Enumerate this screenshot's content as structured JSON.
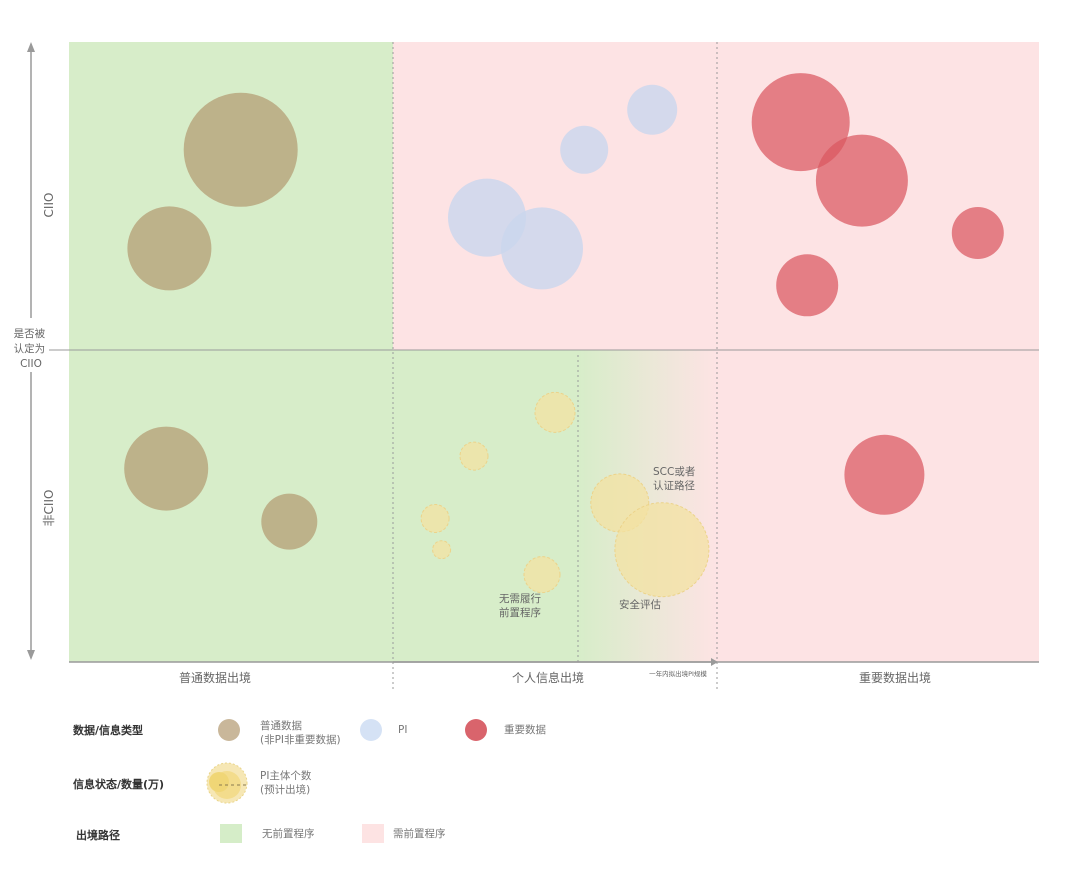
{
  "chart_data": {
    "type": "bubble",
    "quadrant_grid": {
      "x_columns": [
        "普通数据出境",
        "个人信息出境",
        "重要数据出境"
      ],
      "y_rows": [
        "CIIO",
        "非CIIO"
      ],
      "y_axis_title": "是否被认定为CIIO",
      "x_sub_axis_label": "一年内拟出境PI规模",
      "column_backgrounds": [
        "无前置程序",
        "mixed",
        "需前置程序"
      ]
    },
    "series": [
      {
        "name": "普通数据(非PI非重要数据)",
        "color": "#b8a77f",
        "points": [
          {
            "col": 0,
            "row": "CIIO",
            "fx": 0.53,
            "fy": 0.35,
            "size": 57
          },
          {
            "col": 0,
            "row": "CIIO",
            "fx": 0.31,
            "fy": 0.67,
            "size": 42
          },
          {
            "col": 0,
            "row": "非CIIO",
            "fx": 0.3,
            "fy": 0.38,
            "size": 42
          },
          {
            "col": 0,
            "row": "非CIIO",
            "fx": 0.68,
            "fy": 0.55,
            "size": 28
          }
        ]
      },
      {
        "name": "PI",
        "color": "#c9d6ee",
        "points": [
          {
            "col": 1,
            "row": "CIIO",
            "fx": 0.29,
            "fy": 0.57,
            "size": 39
          },
          {
            "col": 1,
            "row": "CIIO",
            "fx": 0.46,
            "fy": 0.67,
            "size": 41
          },
          {
            "col": 1,
            "row": "CIIO",
            "fx": 0.59,
            "fy": 0.35,
            "size": 24
          },
          {
            "col": 1,
            "row": "CIIO",
            "fx": 0.8,
            "fy": 0.22,
            "size": 25
          }
        ]
      },
      {
        "name": "重要数据",
        "color": "#d9585f",
        "points": [
          {
            "col": 2,
            "row": "CIIO",
            "fx": 0.26,
            "fy": 0.26,
            "size": 49
          },
          {
            "col": 2,
            "row": "CIIO",
            "fx": 0.45,
            "fy": 0.45,
            "size": 46
          },
          {
            "col": 2,
            "row": "CIIO",
            "fx": 0.81,
            "fy": 0.62,
            "size": 26
          },
          {
            "col": 2,
            "row": "CIIO",
            "fx": 0.28,
            "fy": 0.79,
            "size": 31
          },
          {
            "col": 2,
            "row": "非CIIO",
            "fx": 0.52,
            "fy": 0.4,
            "size": 40
          }
        ]
      },
      {
        "name": "PI主体个数(预计出境)",
        "color": "#f3e1a2",
        "points": [
          {
            "col": 1,
            "row": "非CIIO",
            "fx": 0.5,
            "fy": 0.2,
            "size": 20
          },
          {
            "col": 1,
            "row": "非CIIO",
            "fx": 0.25,
            "fy": 0.34,
            "size": 14
          },
          {
            "col": 1,
            "row": "非CIIO",
            "fx": 0.13,
            "fy": 0.54,
            "size": 14
          },
          {
            "col": 1,
            "row": "非CIIO",
            "fx": 0.15,
            "fy": 0.64,
            "size": 9
          },
          {
            "col": 1,
            "row": "非CIIO",
            "fx": 0.46,
            "fy": 0.72,
            "size": 18
          },
          {
            "col": 1,
            "row": "非CIIO",
            "fx": 0.7,
            "fy": 0.49,
            "size": 29
          },
          {
            "col": 1,
            "row": "非CIIO",
            "fx": 0.83,
            "fy": 0.64,
            "size": 47
          }
        ]
      }
    ],
    "annotations": [
      {
        "text": [
          "SCC或者",
          "认证路径"
        ],
        "near": "PI large bubbles"
      },
      {
        "text": [
          "安全评估"
        ],
        "near": "largest PI bubble"
      },
      {
        "text": [
          "无需履行",
          "前置程序"
        ],
        "near": "small PI bubbles"
      }
    ],
    "legend": {
      "rows": [
        {
          "title": "数据/信息类型",
          "items": [
            {
              "label": [
                "普通数据",
                "(非PI非重要数据)"
              ],
              "color": "#c9b79a",
              "icon": "circle"
            },
            {
              "label": [
                "PI"
              ],
              "color": "#d5e2f5",
              "icon": "circle"
            },
            {
              "label": [
                "重要数据"
              ],
              "color": "#d9646c",
              "icon": "circle"
            }
          ]
        },
        {
          "title": "信息状态/数量(万)",
          "items": [
            {
              "label": [
                "PI主体个数",
                "(预计出境)"
              ],
              "color": "#f3e1a2",
              "icon": "dashed-bubble"
            }
          ]
        },
        {
          "title": "出境路径",
          "items": [
            {
              "label": [
                "无前置程序"
              ],
              "color": "#d5edc8",
              "icon": "square"
            },
            {
              "label": [
                "需前置程序"
              ],
              "color": "#fde3e3",
              "icon": "square"
            }
          ]
        }
      ]
    },
    "colors": {
      "green_bg": "#d7edc9",
      "pink_bg": "#fde3e4",
      "axis": "#9a9a9a"
    }
  }
}
